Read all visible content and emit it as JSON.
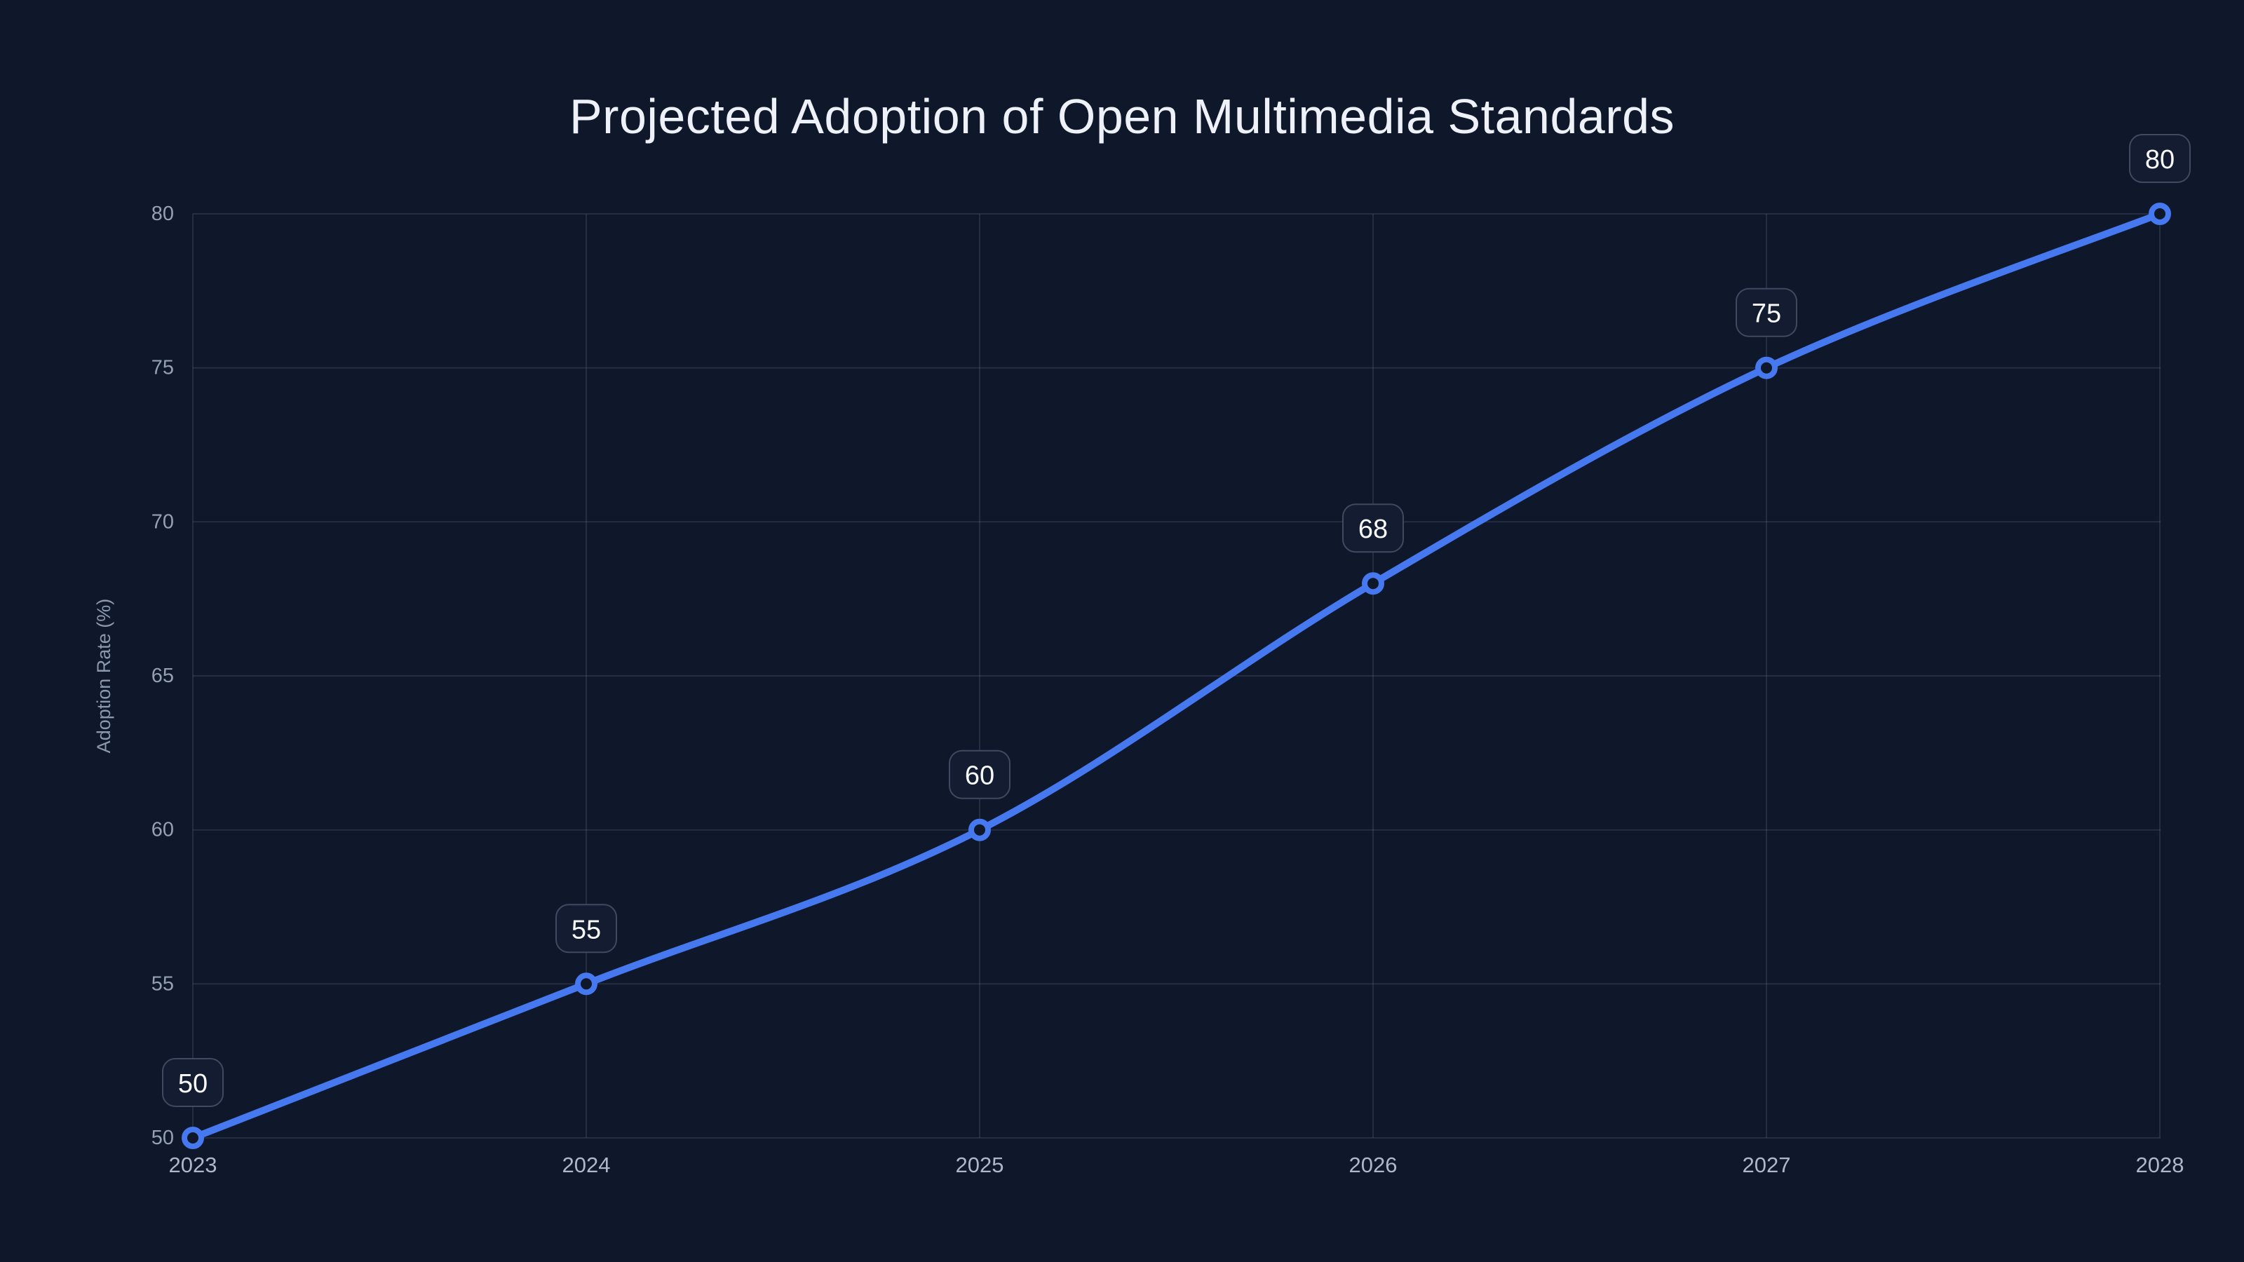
{
  "page": {
    "background_color": "#0f172a"
  },
  "chart": {
    "title": "Projected Adoption of Open Multimedia Standards",
    "y_axis_title": "Adoption Rate (%)",
    "x_tick_labels": [
      "2023",
      "2024",
      "2025",
      "2026",
      "2027",
      "2028"
    ],
    "y_tick_labels": [
      "50",
      "55",
      "60",
      "65",
      "70",
      "75",
      "80"
    ],
    "point_badge_labels": [
      "50",
      "55",
      "60",
      "68",
      "75",
      "80"
    ],
    "colors": {
      "line": "#4679ef",
      "marker_stroke": "#4679ef",
      "marker_fill": "#0f172a",
      "grid": "rgba(148,163,184,0.16)",
      "y_tick_text": "#94a1b5",
      "x_tick_text": "#aeb8c8",
      "axis_title_text": "#8b98ad",
      "title_text": "#eef2f8",
      "badge_fill": "#131c30",
      "badge_border": "#3f4a61",
      "badge_text": "#f8fafc"
    }
  },
  "chart_data": {
    "type": "line",
    "title": "Projected Adoption of Open Multimedia Standards",
    "x": [
      2023,
      2024,
      2025,
      2026,
      2027,
      2028
    ],
    "values": [
      50,
      55,
      60,
      68,
      75,
      80
    ],
    "xlabel": "",
    "ylabel": "Adoption Rate (%)",
    "ylim": [
      50,
      80
    ],
    "y_ticks": [
      50,
      55,
      60,
      65,
      70,
      75,
      80
    ],
    "grid": true,
    "legend": false,
    "line_shape": "spline",
    "marker_style": "open-circle",
    "data_labels": true
  }
}
